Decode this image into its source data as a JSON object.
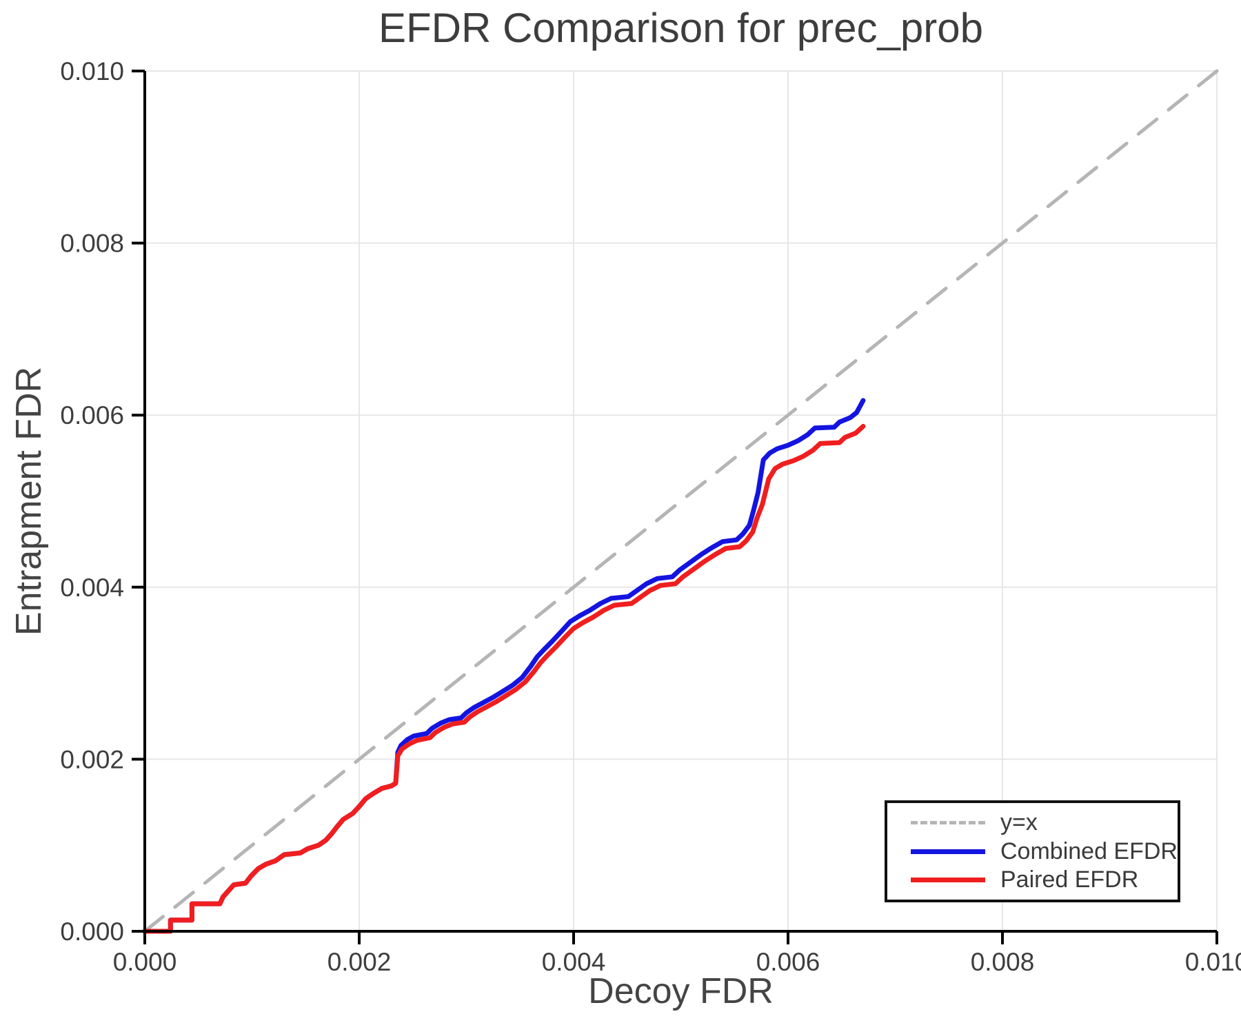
{
  "title": "EFDR Comparison for prec_prob",
  "chart_data": {
    "type": "line",
    "title": "EFDR Comparison for prec_prob",
    "xlabel": "Decoy FDR",
    "ylabel": "Entrapment FDR",
    "xlim": [
      0.0,
      0.01
    ],
    "ylim": [
      0.0,
      0.01
    ],
    "grid": true,
    "grid_color": "#e7e7e7",
    "text_color": "#3d3d3d",
    "x_ticks": {
      "values": [
        0.0,
        0.002,
        0.004,
        0.006,
        0.008,
        0.01
      ],
      "labels": [
        "0.000",
        "0.002",
        "0.004",
        "0.006",
        "0.008",
        "0.010"
      ]
    },
    "y_ticks": {
      "values": [
        0.0,
        0.002,
        0.004,
        0.006,
        0.008,
        0.01
      ],
      "labels": [
        "0.000",
        "0.002",
        "0.004",
        "0.006",
        "0.008",
        "0.010"
      ]
    },
    "point_scale": 0.0001,
    "point_scale_note": "series point coordinates below are FDR values multiplied by 10000",
    "series": [
      {
        "name": "y=x",
        "color": "#b5b5b5",
        "style": "dashed",
        "width": 5,
        "points": [
          [
            0,
            0
          ],
          [
            100,
            100
          ]
        ]
      },
      {
        "name": "Combined EFDR",
        "color": "#1414e0",
        "style": "solid",
        "width": 7,
        "points": [
          [
            0,
            0
          ],
          [
            2.4,
            0
          ],
          [
            2.4,
            1.3
          ],
          [
            4.4,
            1.3
          ],
          [
            4.4,
            3.2
          ],
          [
            7.0,
            3.2
          ],
          [
            7.3,
            4.0
          ],
          [
            7.8,
            4.7
          ],
          [
            8.3,
            5.4
          ],
          [
            9.4,
            5.6
          ],
          [
            9.9,
            6.4
          ],
          [
            10.6,
            7.3
          ],
          [
            11.3,
            7.8
          ],
          [
            12.2,
            8.2
          ],
          [
            13.0,
            8.9
          ],
          [
            14.5,
            9.1
          ],
          [
            15.2,
            9.6
          ],
          [
            16.2,
            10.0
          ],
          [
            16.9,
            10.6
          ],
          [
            17.4,
            11.3
          ],
          [
            17.9,
            12.1
          ],
          [
            18.5,
            13.0
          ],
          [
            19.4,
            13.7
          ],
          [
            20.0,
            14.5
          ],
          [
            20.6,
            15.4
          ],
          [
            21.3,
            16.0
          ],
          [
            22.1,
            16.6
          ],
          [
            23.0,
            16.9
          ],
          [
            23.4,
            17.2
          ],
          [
            23.6,
            20.8
          ],
          [
            23.9,
            21.6
          ],
          [
            24.5,
            22.3
          ],
          [
            25.1,
            22.7
          ],
          [
            26.3,
            23.0
          ],
          [
            26.8,
            23.6
          ],
          [
            27.6,
            24.2
          ],
          [
            28.4,
            24.6
          ],
          [
            29.5,
            24.8
          ],
          [
            30.0,
            25.4
          ],
          [
            30.7,
            26.0
          ],
          [
            31.6,
            26.6
          ],
          [
            32.5,
            27.2
          ],
          [
            33.4,
            27.9
          ],
          [
            34.3,
            28.6
          ],
          [
            35.2,
            29.5
          ],
          [
            36.0,
            30.8
          ],
          [
            36.6,
            31.9
          ],
          [
            37.2,
            32.7
          ],
          [
            38.0,
            33.7
          ],
          [
            38.9,
            34.9
          ],
          [
            39.7,
            36.0
          ],
          [
            40.6,
            36.7
          ],
          [
            41.5,
            37.3
          ],
          [
            42.5,
            38.1
          ],
          [
            43.5,
            38.7
          ],
          [
            45.1,
            38.9
          ],
          [
            45.9,
            39.6
          ],
          [
            46.8,
            40.4
          ],
          [
            47.8,
            41.0
          ],
          [
            49.2,
            41.2
          ],
          [
            49.9,
            42.0
          ],
          [
            50.9,
            42.9
          ],
          [
            51.9,
            43.8
          ],
          [
            52.9,
            44.6
          ],
          [
            53.9,
            45.3
          ],
          [
            55.2,
            45.5
          ],
          [
            55.8,
            46.2
          ],
          [
            56.4,
            47.2
          ],
          [
            56.8,
            49.0
          ],
          [
            57.2,
            51.0
          ],
          [
            57.7,
            54.8
          ],
          [
            58.3,
            55.6
          ],
          [
            59.0,
            56.1
          ],
          [
            60.0,
            56.5
          ],
          [
            60.9,
            57.0
          ],
          [
            61.8,
            57.7
          ],
          [
            62.5,
            58.5
          ],
          [
            64.3,
            58.6
          ],
          [
            64.8,
            59.2
          ],
          [
            65.8,
            59.7
          ],
          [
            66.4,
            60.3
          ],
          [
            67.0,
            61.7
          ]
        ]
      },
      {
        "name": "Paired EFDR",
        "color": "#f01e1e",
        "style": "solid",
        "width": 7,
        "points": [
          [
            0,
            0
          ],
          [
            2.4,
            0
          ],
          [
            2.4,
            1.3
          ],
          [
            4.4,
            1.3
          ],
          [
            4.4,
            3.2
          ],
          [
            7.0,
            3.2
          ],
          [
            7.3,
            4.0
          ],
          [
            7.8,
            4.7
          ],
          [
            8.3,
            5.4
          ],
          [
            9.4,
            5.6
          ],
          [
            9.9,
            6.4
          ],
          [
            10.6,
            7.3
          ],
          [
            11.3,
            7.8
          ],
          [
            12.2,
            8.2
          ],
          [
            13.0,
            8.9
          ],
          [
            14.5,
            9.1
          ],
          [
            15.2,
            9.6
          ],
          [
            16.2,
            10.0
          ],
          [
            16.9,
            10.6
          ],
          [
            17.4,
            11.3
          ],
          [
            17.9,
            12.1
          ],
          [
            18.5,
            13.0
          ],
          [
            19.4,
            13.7
          ],
          [
            20.0,
            14.5
          ],
          [
            20.6,
            15.4
          ],
          [
            21.3,
            16.0
          ],
          [
            22.1,
            16.6
          ],
          [
            23.0,
            16.9
          ],
          [
            23.4,
            17.2
          ],
          [
            23.6,
            20.4
          ],
          [
            24.0,
            21.2
          ],
          [
            24.7,
            21.8
          ],
          [
            25.4,
            22.2
          ],
          [
            26.6,
            22.5
          ],
          [
            27.1,
            23.1
          ],
          [
            27.9,
            23.7
          ],
          [
            28.7,
            24.1
          ],
          [
            29.8,
            24.3
          ],
          [
            30.3,
            24.9
          ],
          [
            31.0,
            25.5
          ],
          [
            31.9,
            26.1
          ],
          [
            32.8,
            26.7
          ],
          [
            33.7,
            27.4
          ],
          [
            34.6,
            28.1
          ],
          [
            35.5,
            29.0
          ],
          [
            36.3,
            30.2
          ],
          [
            36.9,
            31.2
          ],
          [
            37.5,
            32.0
          ],
          [
            38.3,
            33.0
          ],
          [
            39.2,
            34.2
          ],
          [
            40.0,
            35.2
          ],
          [
            40.9,
            35.9
          ],
          [
            41.8,
            36.5
          ],
          [
            42.8,
            37.3
          ],
          [
            43.8,
            37.9
          ],
          [
            45.4,
            38.1
          ],
          [
            46.2,
            38.8
          ],
          [
            47.1,
            39.6
          ],
          [
            48.1,
            40.2
          ],
          [
            49.5,
            40.4
          ],
          [
            50.2,
            41.2
          ],
          [
            51.2,
            42.1
          ],
          [
            52.2,
            43.0
          ],
          [
            53.2,
            43.8
          ],
          [
            54.2,
            44.5
          ],
          [
            55.5,
            44.7
          ],
          [
            56.1,
            45.4
          ],
          [
            56.7,
            46.4
          ],
          [
            57.1,
            48.0
          ],
          [
            57.6,
            49.6
          ],
          [
            58.2,
            52.6
          ],
          [
            58.8,
            53.8
          ],
          [
            59.5,
            54.3
          ],
          [
            60.5,
            54.7
          ],
          [
            61.4,
            55.2
          ],
          [
            62.3,
            55.9
          ],
          [
            63.0,
            56.7
          ],
          [
            64.8,
            56.8
          ],
          [
            65.3,
            57.4
          ],
          [
            66.3,
            57.9
          ],
          [
            67.0,
            58.7
          ]
        ]
      }
    ],
    "legend": {
      "position": "lower right",
      "entries": [
        {
          "label": "y=x",
          "color": "#b5b5b5",
          "style": "dashed"
        },
        {
          "label": "Combined EFDR",
          "color": "#1414e0",
          "style": "solid"
        },
        {
          "label": "Paired EFDR",
          "color": "#f01e1e",
          "style": "solid"
        }
      ]
    }
  }
}
